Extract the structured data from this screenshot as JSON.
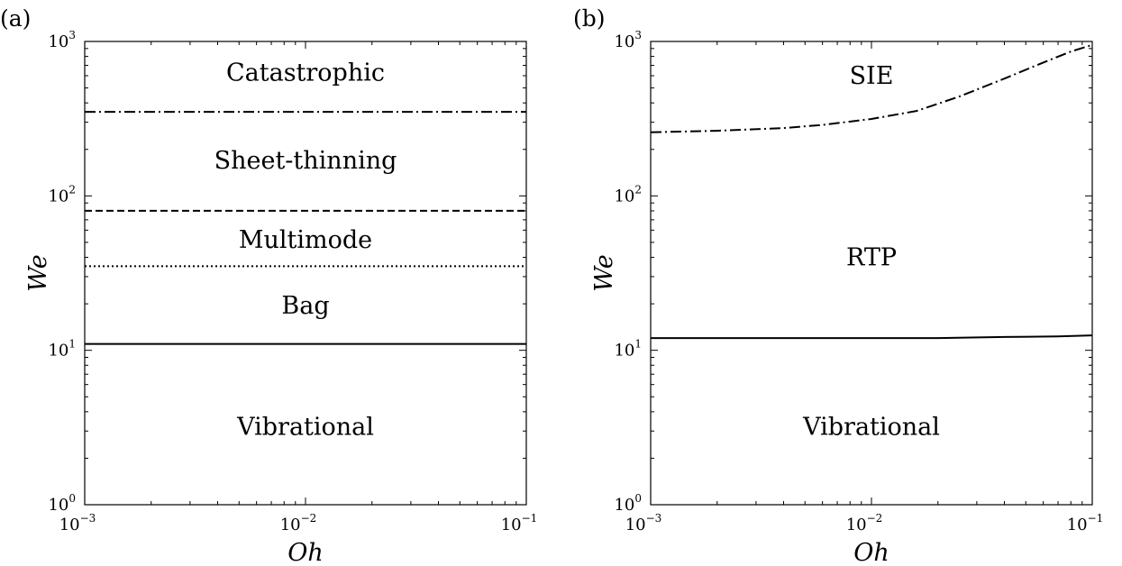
{
  "chart_data": [
    {
      "type": "line",
      "panel_tag": "(a)",
      "xlabel": "Oh",
      "ylabel": "We",
      "x_scale": "log",
      "y_scale": "log",
      "xlim": [
        0.001,
        0.1
      ],
      "ylim": [
        1,
        1000
      ],
      "x_ticks": [
        {
          "base": "10",
          "exp": "−3"
        },
        {
          "base": "10",
          "exp": "−2"
        },
        {
          "base": "10",
          "exp": "−1"
        }
      ],
      "y_ticks": [
        {
          "base": "10",
          "exp": "0"
        },
        {
          "base": "10",
          "exp": "1"
        },
        {
          "base": "10",
          "exp": "2"
        },
        {
          "base": "10",
          "exp": "3"
        }
      ],
      "grid": false,
      "series": [
        {
          "style": "solid",
          "x": [
            0.001,
            0.1
          ],
          "y": [
            11,
            11
          ]
        },
        {
          "style": "dotted",
          "x": [
            0.001,
            0.1
          ],
          "y": [
            35,
            35
          ]
        },
        {
          "style": "dashed",
          "x": [
            0.001,
            0.1
          ],
          "y": [
            80,
            80
          ]
        },
        {
          "style": "dashdot",
          "x": [
            0.001,
            0.1
          ],
          "y": [
            350,
            350
          ]
        }
      ],
      "regions": [
        {
          "text": "Catastrophic",
          "x": 0.01,
          "y": 630
        },
        {
          "text": "Sheet-thinning",
          "x": 0.01,
          "y": 170
        },
        {
          "text": "Multimode",
          "x": 0.01,
          "y": 52
        },
        {
          "text": "Bag",
          "x": 0.01,
          "y": 19.5
        },
        {
          "text": "Vibrational",
          "x": 0.01,
          "y": 3.2
        }
      ]
    },
    {
      "type": "line",
      "panel_tag": "(b)",
      "xlabel": "Oh",
      "ylabel": "We",
      "x_scale": "log",
      "y_scale": "log",
      "xlim": [
        0.001,
        0.1
      ],
      "ylim": [
        1,
        1000
      ],
      "x_ticks": [
        {
          "base": "10",
          "exp": "−3"
        },
        {
          "base": "10",
          "exp": "−2"
        },
        {
          "base": "10",
          "exp": "−1"
        }
      ],
      "y_ticks": [
        {
          "base": "10",
          "exp": "0"
        },
        {
          "base": "10",
          "exp": "1"
        },
        {
          "base": "10",
          "exp": "2"
        },
        {
          "base": "10",
          "exp": "3"
        }
      ],
      "grid": false,
      "series": [
        {
          "style": "solid",
          "x": [
            0.001,
            0.002,
            0.005,
            0.01,
            0.02,
            0.04,
            0.07,
            0.1
          ],
          "y": [
            12,
            12,
            12,
            12,
            12,
            12.2,
            12.3,
            12.5
          ]
        },
        {
          "style": "dashdot",
          "x": [
            0.001,
            0.002,
            0.004,
            0.006,
            0.01,
            0.016,
            0.025,
            0.04,
            0.06,
            0.08,
            0.1
          ],
          "y": [
            258,
            264,
            275,
            288,
            315,
            355,
            440,
            575,
            730,
            860,
            950
          ]
        }
      ],
      "regions": [
        {
          "text": "SIE",
          "x": 0.01,
          "y": 600
        },
        {
          "text": "RTP",
          "x": 0.01,
          "y": 40
        },
        {
          "text": "Vibrational",
          "x": 0.01,
          "y": 3.2
        }
      ]
    }
  ]
}
